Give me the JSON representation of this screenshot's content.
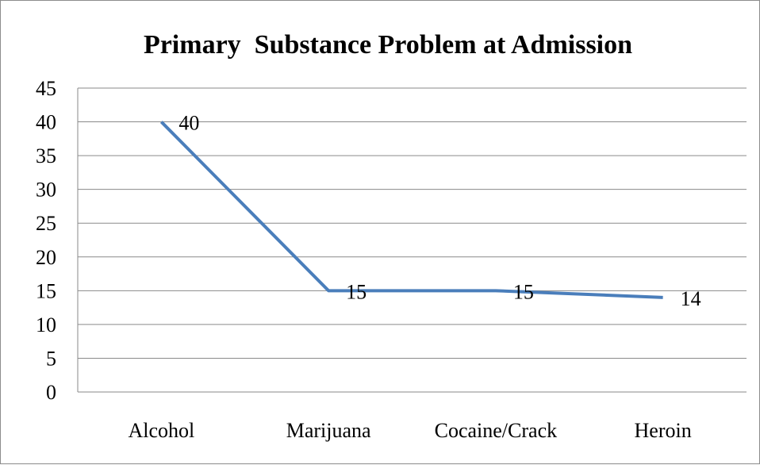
{
  "chart_data": {
    "type": "line",
    "title": "Primary  Substance Problem at Admission",
    "categories": [
      "Alcohol",
      "Marijuana",
      "Cocaine/Crack",
      "Heroin"
    ],
    "values": [
      40,
      15,
      15,
      14
    ],
    "data_labels": [
      "40",
      "15",
      "15",
      "14"
    ],
    "ylim": [
      0,
      45
    ],
    "y_ticks": [
      0,
      5,
      10,
      15,
      20,
      25,
      30,
      35,
      40,
      45
    ],
    "grid": true,
    "legend": "none",
    "series_color": "#4a7ebb"
  }
}
